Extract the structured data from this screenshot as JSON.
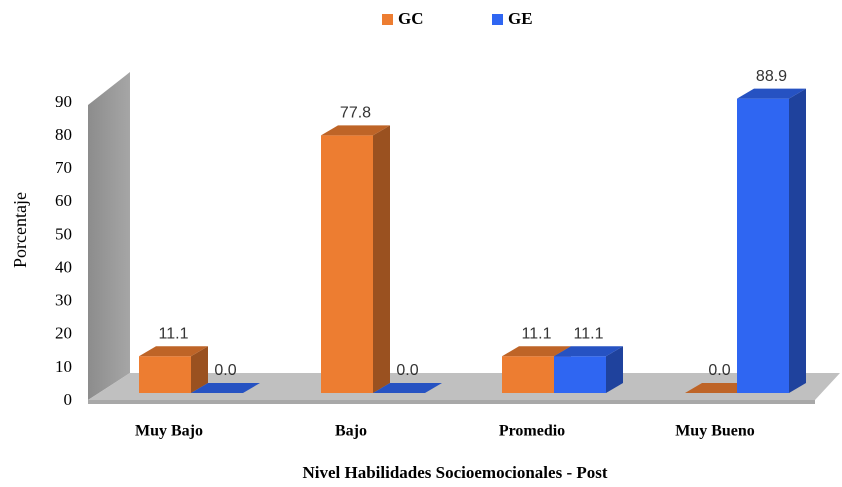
{
  "chart_data": {
    "type": "bar3d",
    "y_label": "Porcentaje",
    "x_label": "Nivel Habilidades Socioemocionales - Post",
    "categories": [
      "Muy Bajo",
      "Bajo",
      "Promedio",
      "Muy Bueno"
    ],
    "series": [
      {
        "name": "GC",
        "color": "#ED7D31",
        "values": [
          11.1,
          77.8,
          11.1,
          0
        ],
        "value_labels": [
          "11.1",
          "77.8",
          "11.1",
          "0.0"
        ]
      },
      {
        "name": "GE",
        "color": "#2F66F2",
        "values": [
          0,
          0,
          11.1,
          88.9
        ],
        "value_labels": [
          "0.0",
          "0.0",
          "11.1",
          "88.9"
        ]
      }
    ],
    "ylim": [
      0,
      90
    ],
    "yticks": [
      0,
      10,
      20,
      30,
      40,
      50,
      60,
      70,
      80,
      90
    ],
    "legend": "top"
  }
}
